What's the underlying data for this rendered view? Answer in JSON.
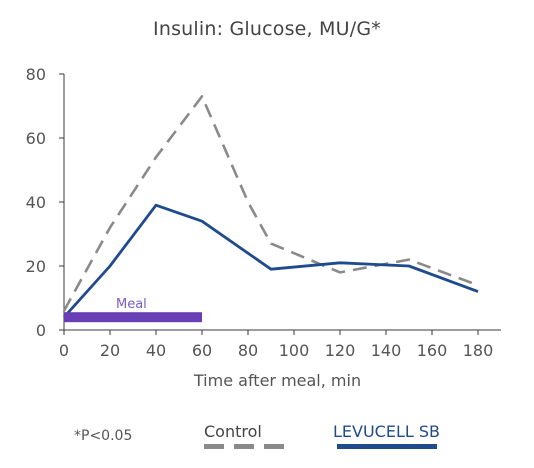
{
  "chart_data": {
    "type": "line",
    "title": "Insulin: Glucose, MU/G*",
    "xlabel": "Time after meal, min",
    "ylabel": "",
    "x_ticks": [
      "0",
      "20",
      "40",
      "60",
      "80",
      "100",
      "120",
      "140",
      "160",
      "180"
    ],
    "y_ticks": [
      "0",
      "20",
      "40",
      "60",
      "80"
    ],
    "xlim": [
      0,
      190
    ],
    "ylim": [
      0,
      80
    ],
    "grid": false,
    "legend_position": "bottom",
    "series": [
      {
        "name": "Control",
        "style": "dashed",
        "color": "#8a8a8a",
        "x": [
          0,
          20,
          40,
          60,
          80,
          90,
          100,
          120,
          150,
          180
        ],
        "y": [
          6,
          32,
          54,
          73,
          40,
          27,
          24,
          18,
          22,
          14
        ]
      },
      {
        "name": "LEVUCELL SB",
        "style": "solid",
        "color": "#1f4b8c",
        "x": [
          0,
          20,
          40,
          60,
          90,
          120,
          150,
          180
        ],
        "y": [
          4,
          20,
          39,
          34,
          19,
          21,
          20,
          12
        ]
      }
    ],
    "annotations": [
      {
        "label": "Meal",
        "x_start": 0,
        "x_end": 60,
        "y": 4,
        "color": "#6a3fb5"
      }
    ],
    "footnote": "*P<0.05"
  }
}
